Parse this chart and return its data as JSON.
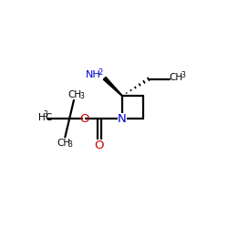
{
  "bg_color": "#ffffff",
  "bond_color": "#000000",
  "N_color": "#0000cc",
  "O_color": "#cc0000",
  "figsize": [
    2.5,
    2.5
  ],
  "dpi": 100,
  "xlim": [
    0,
    10
  ],
  "ylim": [
    0,
    10
  ],
  "bond_lw": 1.6,
  "font_size_main": 7.5,
  "font_size_sub": 5.5,
  "azetidine_N": [
    5.3,
    4.8
  ],
  "azetidine_C2": [
    5.3,
    6.1
  ],
  "azetidine_C3": [
    6.5,
    6.1
  ],
  "azetidine_C4": [
    6.5,
    4.8
  ],
  "carbonyl_C": [
    4.0,
    4.8
  ],
  "carbonyl_O": [
    4.0,
    3.55
  ],
  "ester_O_x": 3.1,
  "tbu_C": [
    2.3,
    4.8
  ],
  "CH2_amine": [
    4.3,
    7.1
  ],
  "CH2_ethyl": [
    6.8,
    7.05
  ],
  "CH3_ethyl": [
    8.0,
    7.05
  ]
}
